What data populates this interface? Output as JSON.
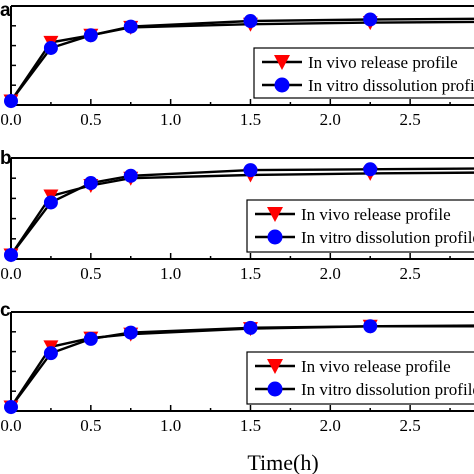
{
  "chart_data": [
    {
      "type": "line",
      "panel_label": "a",
      "x": [
        0,
        0.25,
        0.5,
        0.75,
        1.5,
        2.25,
        3
      ],
      "series": [
        {
          "name": "In vivo release profile",
          "marker": "triangle-down",
          "color": "#ff0000",
          "values": [
            0.0,
            0.74,
            0.83,
            0.93,
            0.97,
            0.99,
            1.0
          ]
        },
        {
          "name": "In vitro dissolution profile",
          "marker": "circle",
          "color": "#0000ff",
          "values": [
            0.0,
            0.67,
            0.83,
            0.94,
            1.01,
            1.03,
            1.04
          ]
        }
      ],
      "xlim": [
        0,
        2.9
      ],
      "ylim": [
        -0.05,
        1.2
      ],
      "xticks": [
        "0.0",
        "0.5",
        "1.0",
        "1.5",
        "2.0",
        "2.5"
      ],
      "legend": "right"
    },
    {
      "type": "line",
      "panel_label": "b",
      "x": [
        0,
        0.25,
        0.5,
        0.75,
        1.5,
        2.25,
        3
      ],
      "series": [
        {
          "name": "In vivo release profile",
          "marker": "triangle-down",
          "color": "#ff0000",
          "values": [
            0.0,
            0.73,
            0.86,
            0.95,
            0.99,
            1.01,
            1.02
          ]
        },
        {
          "name": "In vitro dissolution profile",
          "marker": "circle",
          "color": "#0000ff",
          "values": [
            0.0,
            0.65,
            0.89,
            0.98,
            1.05,
            1.06,
            1.07
          ]
        }
      ],
      "xlim": [
        0,
        2.9
      ],
      "ylim": [
        -0.05,
        1.2
      ],
      "xticks": [
        "0.0",
        "0.5",
        "1.0",
        "1.5",
        "2.0",
        "2.5"
      ],
      "legend": "right"
    },
    {
      "type": "line",
      "panel_label": "c",
      "x": [
        0,
        0.25,
        0.5,
        0.75,
        1.5,
        2.25,
        3
      ],
      "series": [
        {
          "name": "In vivo release profile",
          "marker": "triangle-down",
          "color": "#ff0000",
          "values": [
            0.0,
            0.76,
            0.87,
            0.92,
            0.99,
            1.02,
            1.02
          ]
        },
        {
          "name": "In vitro dissolution profile",
          "marker": "circle",
          "color": "#0000ff",
          "values": [
            0.0,
            0.68,
            0.86,
            0.94,
            1.0,
            1.02,
            1.03
          ]
        }
      ],
      "xlim": [
        0,
        2.9
      ],
      "ylim": [
        -0.05,
        1.2
      ],
      "xticks": [
        "0.0",
        "0.5",
        "1.0",
        "1.5",
        "2.0",
        "2.5"
      ],
      "legend": "right",
      "xlabel": "Time(h)"
    }
  ]
}
